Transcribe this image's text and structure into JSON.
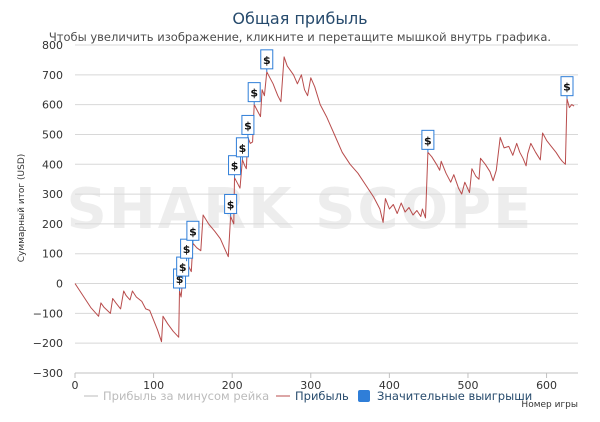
{
  "header": {
    "title": "Общая прибыль",
    "subtitle": "Чтобы увеличить изображение, кликните и перетащите мышкой внутрь графика."
  },
  "watermark": {
    "text": "SHARK SCOPE"
  },
  "colors": {
    "profit_line": "#b84c4c",
    "rake_line": "#bbbbbb",
    "marker_border": "#2f7ed8",
    "grid": "#d8d8d8",
    "title": "#274b6d",
    "legend_active": "#274b6d",
    "legend_inactive": "#bbbbbb"
  },
  "chart_data": {
    "type": "line",
    "title": "Общая прибыль",
    "xlabel": "Номер игры",
    "ylabel": "Суммарный итог (USD)",
    "xlim": [
      0,
      640
    ],
    "ylim": [
      -300,
      800
    ],
    "xticks": [
      0,
      100,
      200,
      300,
      400,
      500,
      600
    ],
    "yticks": [
      -300,
      -200,
      -100,
      0,
      100,
      200,
      300,
      400,
      500,
      600,
      700,
      800
    ],
    "grid": true,
    "legend_position": "bottom",
    "series": [
      {
        "name": "Прибыль за минусом рейка",
        "visible": false,
        "points": []
      },
      {
        "name": "Прибыль",
        "visible": true,
        "points": [
          [
            0,
            0
          ],
          [
            10,
            -40
          ],
          [
            20,
            -80
          ],
          [
            30,
            -110
          ],
          [
            33,
            -65
          ],
          [
            37,
            -80
          ],
          [
            45,
            -100
          ],
          [
            48,
            -50
          ],
          [
            52,
            -65
          ],
          [
            58,
            -85
          ],
          [
            62,
            -25
          ],
          [
            65,
            -40
          ],
          [
            70,
            -55
          ],
          [
            73,
            -25
          ],
          [
            78,
            -45
          ],
          [
            85,
            -60
          ],
          [
            90,
            -85
          ],
          [
            95,
            -90
          ],
          [
            105,
            -155
          ],
          [
            110,
            -195
          ],
          [
            112,
            -110
          ],
          [
            118,
            -135
          ],
          [
            125,
            -160
          ],
          [
            132,
            -180
          ],
          [
            133,
            -25
          ],
          [
            135,
            -45
          ],
          [
            137,
            15
          ],
          [
            140,
            0
          ],
          [
            142,
            75
          ],
          [
            145,
            55
          ],
          [
            148,
            40
          ],
          [
            150,
            135
          ],
          [
            155,
            120
          ],
          [
            160,
            110
          ],
          [
            163,
            230
          ],
          [
            170,
            200
          ],
          [
            178,
            175
          ],
          [
            185,
            150
          ],
          [
            190,
            120
          ],
          [
            195,
            90
          ],
          [
            198,
            225
          ],
          [
            202,
            200
          ],
          [
            203,
            355
          ],
          [
            207,
            335
          ],
          [
            210,
            320
          ],
          [
            213,
            415
          ],
          [
            216,
            395
          ],
          [
            218,
            385
          ],
          [
            220,
            490
          ],
          [
            223,
            470
          ],
          [
            226,
            475
          ],
          [
            228,
            600
          ],
          [
            232,
            580
          ],
          [
            236,
            560
          ],
          [
            238,
            650
          ],
          [
            241,
            630
          ],
          [
            244,
            710
          ],
          [
            248,
            690
          ],
          [
            252,
            670
          ],
          [
            255,
            650
          ],
          [
            258,
            630
          ],
          [
            262,
            610
          ],
          [
            266,
            760
          ],
          [
            270,
            730
          ],
          [
            278,
            700
          ],
          [
            283,
            670
          ],
          [
            288,
            700
          ],
          [
            292,
            650
          ],
          [
            296,
            630
          ],
          [
            300,
            690
          ],
          [
            305,
            660
          ],
          [
            312,
            600
          ],
          [
            320,
            560
          ],
          [
            330,
            500
          ],
          [
            340,
            440
          ],
          [
            350,
            400
          ],
          [
            360,
            370
          ],
          [
            370,
            330
          ],
          [
            380,
            290
          ],
          [
            388,
            250
          ],
          [
            392,
            205
          ],
          [
            395,
            285
          ],
          [
            400,
            250
          ],
          [
            405,
            265
          ],
          [
            410,
            235
          ],
          [
            415,
            270
          ],
          [
            420,
            240
          ],
          [
            425,
            255
          ],
          [
            430,
            230
          ],
          [
            435,
            245
          ],
          [
            440,
            225
          ],
          [
            442,
            250
          ],
          [
            446,
            220
          ],
          [
            449,
            440
          ],
          [
            454,
            425
          ],
          [
            460,
            400
          ],
          [
            464,
            380
          ],
          [
            466,
            410
          ],
          [
            472,
            370
          ],
          [
            478,
            340
          ],
          [
            482,
            365
          ],
          [
            488,
            320
          ],
          [
            492,
            300
          ],
          [
            496,
            340
          ],
          [
            502,
            305
          ],
          [
            505,
            385
          ],
          [
            510,
            360
          ],
          [
            514,
            350
          ],
          [
            516,
            420
          ],
          [
            522,
            400
          ],
          [
            528,
            375
          ],
          [
            532,
            345
          ],
          [
            536,
            380
          ],
          [
            541,
            490
          ],
          [
            546,
            455
          ],
          [
            552,
            460
          ],
          [
            557,
            430
          ],
          [
            562,
            470
          ],
          [
            566,
            440
          ],
          [
            570,
            420
          ],
          [
            574,
            395
          ],
          [
            576,
            435
          ],
          [
            580,
            470
          ],
          [
            586,
            440
          ],
          [
            592,
            415
          ],
          [
            595,
            505
          ],
          [
            600,
            480
          ],
          [
            606,
            460
          ],
          [
            612,
            440
          ],
          [
            617,
            420
          ],
          [
            620,
            410
          ],
          [
            624,
            400
          ],
          [
            626,
            620
          ],
          [
            629,
            590
          ],
          [
            632,
            600
          ],
          [
            635,
            595
          ]
        ]
      },
      {
        "name": "Значительные выигрыши",
        "visible": true,
        "label": "$",
        "points": [
          [
            133,
            -25
          ],
          [
            137,
            15
          ],
          [
            142,
            75
          ],
          [
            150,
            135
          ],
          [
            198,
            225
          ],
          [
            203,
            355
          ],
          [
            213,
            415
          ],
          [
            220,
            490
          ],
          [
            228,
            600
          ],
          [
            244,
            710
          ],
          [
            449,
            440
          ],
          [
            626,
            620
          ]
        ]
      }
    ]
  }
}
